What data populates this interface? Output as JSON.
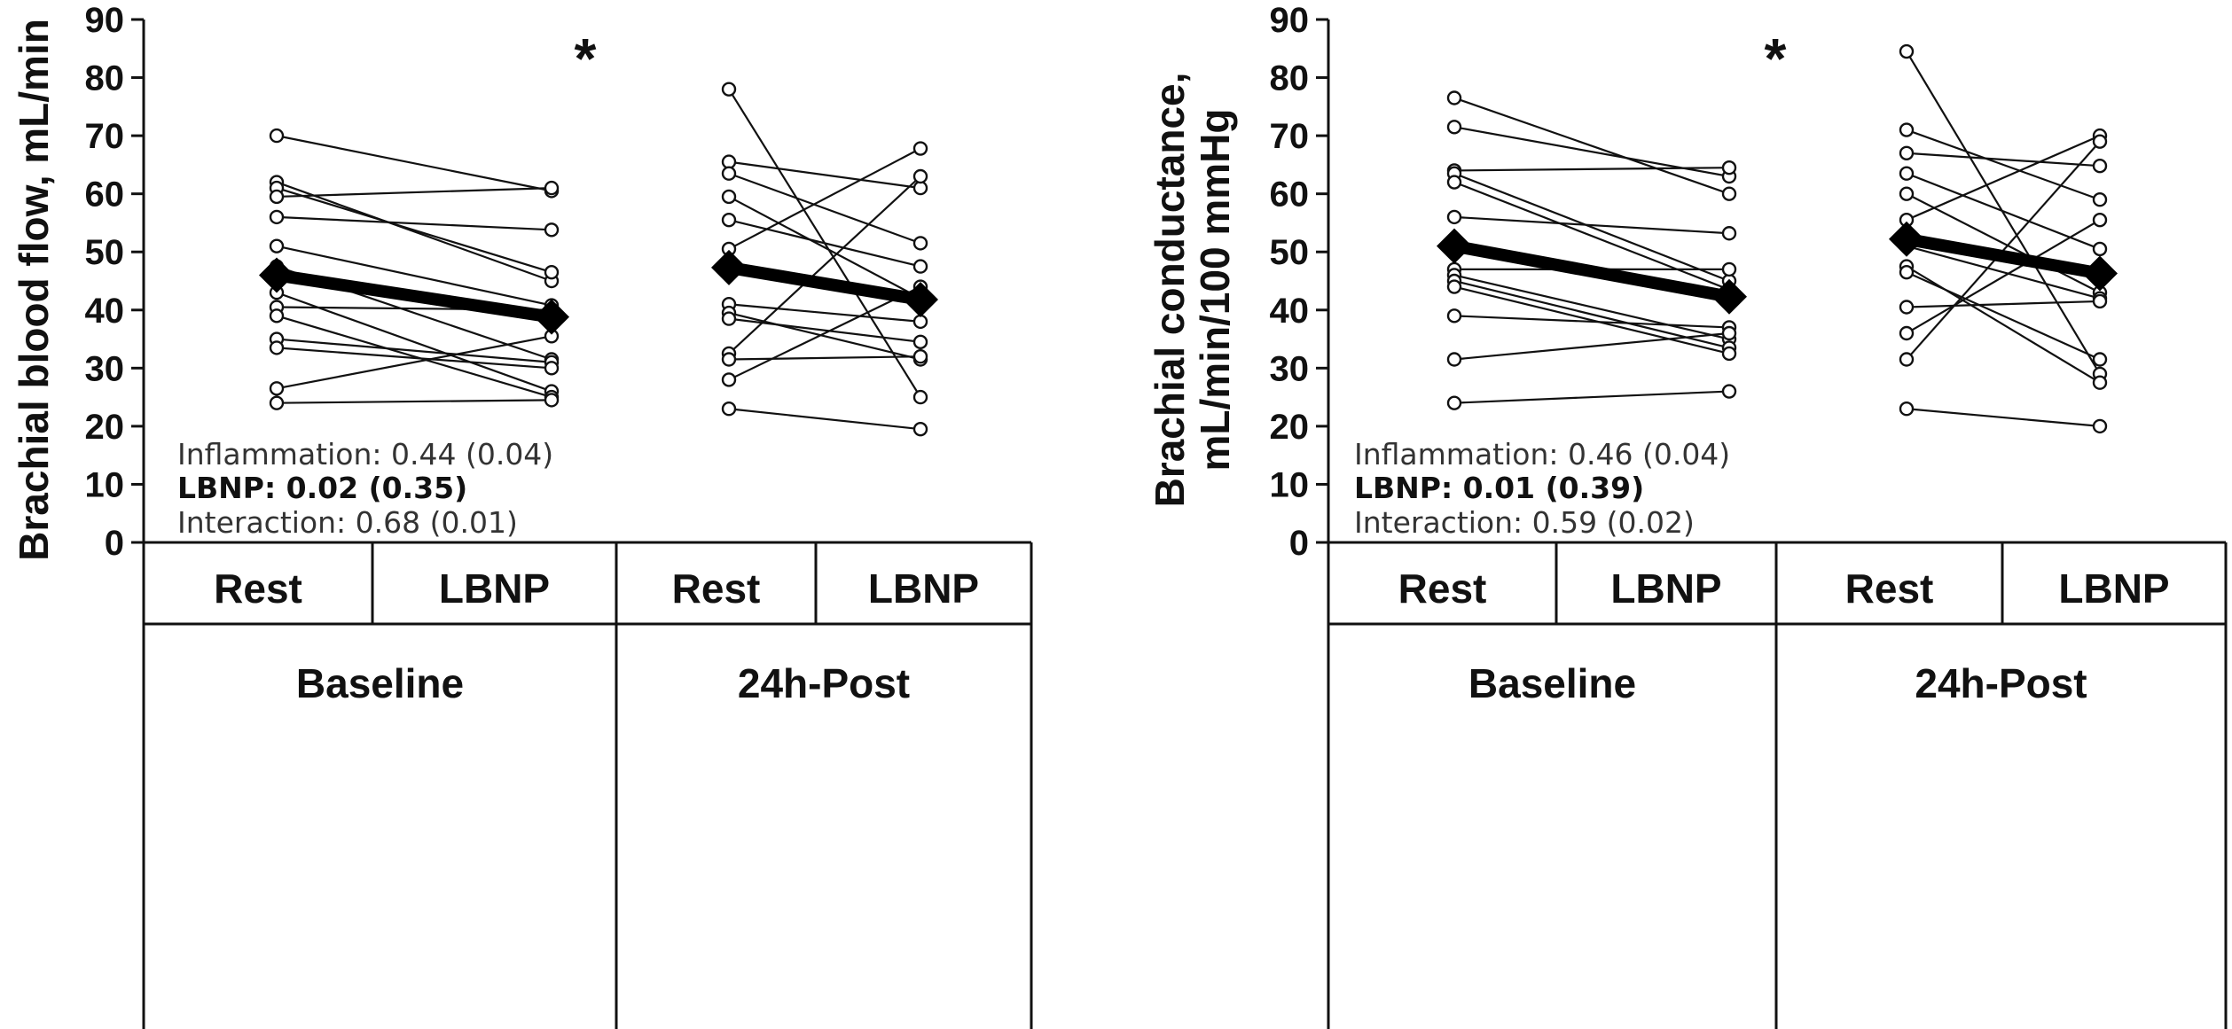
{
  "chart_data": [
    {
      "type": "line",
      "ylabel": [
        "Brachial blood flow, mL/min"
      ],
      "ylim": [
        0,
        90
      ],
      "yticks": [
        "0",
        "10",
        "20",
        "30",
        "40",
        "50",
        "60",
        "70",
        "80",
        "90"
      ],
      "categories": [
        "Rest",
        "LBNP",
        "Rest",
        "LBNP"
      ],
      "groups": [
        "Baseline",
        "24h-Post"
      ],
      "significance_marker": "*",
      "stats": [
        {
          "text": "Inflammation: 0.44 (0.04)",
          "bold": false
        },
        {
          "text": "LBNP: 0.02 (0.35)",
          "bold": true
        },
        {
          "text": "Interaction: 0.68 (0.01)",
          "bold": false
        }
      ],
      "individual_pairs": {
        "Baseline": [
          [
            70,
            60.5
          ],
          [
            62,
            45
          ],
          [
            61,
            46.5
          ],
          [
            59.5,
            61
          ],
          [
            56,
            53.8
          ],
          [
            51,
            40.8
          ],
          [
            47.5,
            31.5
          ],
          [
            46,
            39
          ],
          [
            43,
            26
          ],
          [
            40.5,
            40
          ],
          [
            39,
            25
          ],
          [
            35,
            31
          ],
          [
            33.5,
            30
          ],
          [
            26.5,
            35.5
          ],
          [
            24,
            24.5
          ]
        ],
        "24h-Post": [
          [
            78,
            25
          ],
          [
            65.5,
            61
          ],
          [
            63.5,
            51.5
          ],
          [
            59.5,
            42
          ],
          [
            55.5,
            47.5
          ],
          [
            50.5,
            67.8
          ],
          [
            41,
            38
          ],
          [
            39.5,
            31.5
          ],
          [
            38.5,
            34.5
          ],
          [
            32.5,
            63
          ],
          [
            31.5,
            32
          ],
          [
            28,
            44
          ],
          [
            23,
            19.5
          ]
        ]
      },
      "mean_pairs": {
        "Baseline": [
          46,
          38.8
        ],
        "24h-Post": [
          47.3,
          41.8
        ]
      }
    },
    {
      "type": "line",
      "ylabel": [
        "Brachial conductance,",
        "mL/min/100 mmHg"
      ],
      "ylim": [
        0,
        90
      ],
      "yticks": [
        "0",
        "10",
        "20",
        "30",
        "40",
        "50",
        "60",
        "70",
        "80",
        "90"
      ],
      "categories": [
        "Rest",
        "LBNP",
        "Rest",
        "LBNP"
      ],
      "groups": [
        "Baseline",
        "24h-Post"
      ],
      "significance_marker": "*",
      "stats": [
        {
          "text": "Inflammation: 0.46 (0.04)",
          "bold": false
        },
        {
          "text": "LBNP: 0.01 (0.39)",
          "bold": true
        },
        {
          "text": "Interaction: 0.59 (0.02)",
          "bold": false
        }
      ],
      "individual_pairs": {
        "Baseline": [
          [
            76.5,
            60
          ],
          [
            71.5,
            63
          ],
          [
            64,
            64.5
          ],
          [
            63.5,
            45
          ],
          [
            62,
            43.5
          ],
          [
            56,
            53.2
          ],
          [
            47,
            47
          ],
          [
            46,
            35
          ],
          [
            45,
            33.5
          ],
          [
            44,
            32.5
          ],
          [
            39,
            37
          ],
          [
            31.5,
            36
          ],
          [
            24,
            26
          ]
        ],
        "24h-Post": [
          [
            84.5,
            29
          ],
          [
            71,
            59
          ],
          [
            67,
            64.8
          ],
          [
            63.5,
            50.5
          ],
          [
            60,
            43
          ],
          [
            55.5,
            70
          ],
          [
            51,
            42
          ],
          [
            47.5,
            27.5
          ],
          [
            46.5,
            31.5
          ],
          [
            40.5,
            41.5
          ],
          [
            36,
            55.5
          ],
          [
            31.5,
            69
          ],
          [
            23,
            20
          ]
        ]
      },
      "mean_pairs": {
        "Baseline": [
          51,
          42.3
        ],
        "24h-Post": [
          52.2,
          46.3
        ]
      }
    }
  ]
}
